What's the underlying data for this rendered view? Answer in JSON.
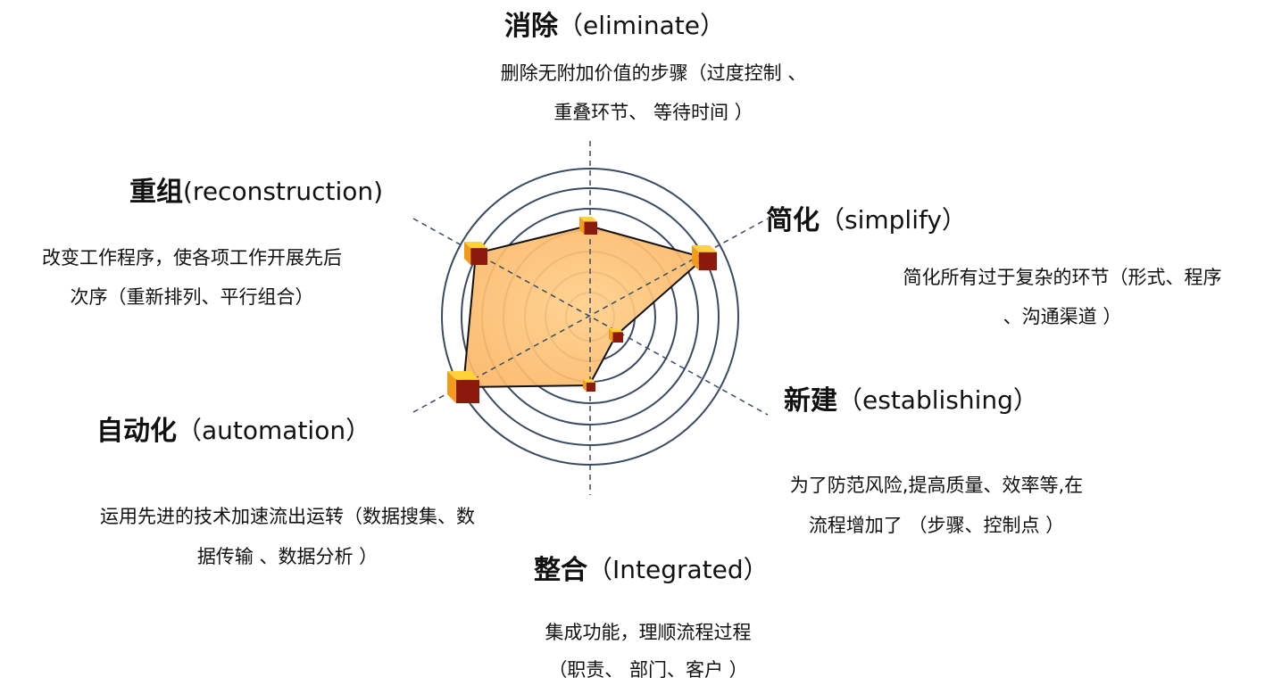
{
  "nodes": [
    {
      "name": "消除",
      "english": "（eliminate）",
      "lines": [
        "删除无附加价值的步骤（过度控制 、",
        "重叠环节、 等待时间 ）"
      ]
    },
    {
      "name": "简化",
      "english": "（simplify）",
      "lines": [
        "简化所有过于复杂的环节（形式、程序",
        "、沟通渠道 ）"
      ]
    },
    {
      "name": "新建",
      "english": "（establishing）",
      "lines": [
        "为了防范风险,提高质量、效率等,在",
        "流程增加了 （步骤、控制点 ）"
      ]
    },
    {
      "name": "整合",
      "english": "（Integrated）",
      "lines": [
        "集成功能，理顺流程过程",
        "（职责、 部门、客户 ）"
      ]
    },
    {
      "name": "自动化",
      "english": "（automation）",
      "lines": [
        "运用先进的技术加速流出运转（数据搜集、数",
        "据传输 、数据分析 ）"
      ]
    },
    {
      "name": "重组",
      "english": "(reconstruction)",
      "lines": [
        "改变工作程序，使各项工作开展先后",
        "次序（重新排列、平行组合）"
      ]
    }
  ]
}
